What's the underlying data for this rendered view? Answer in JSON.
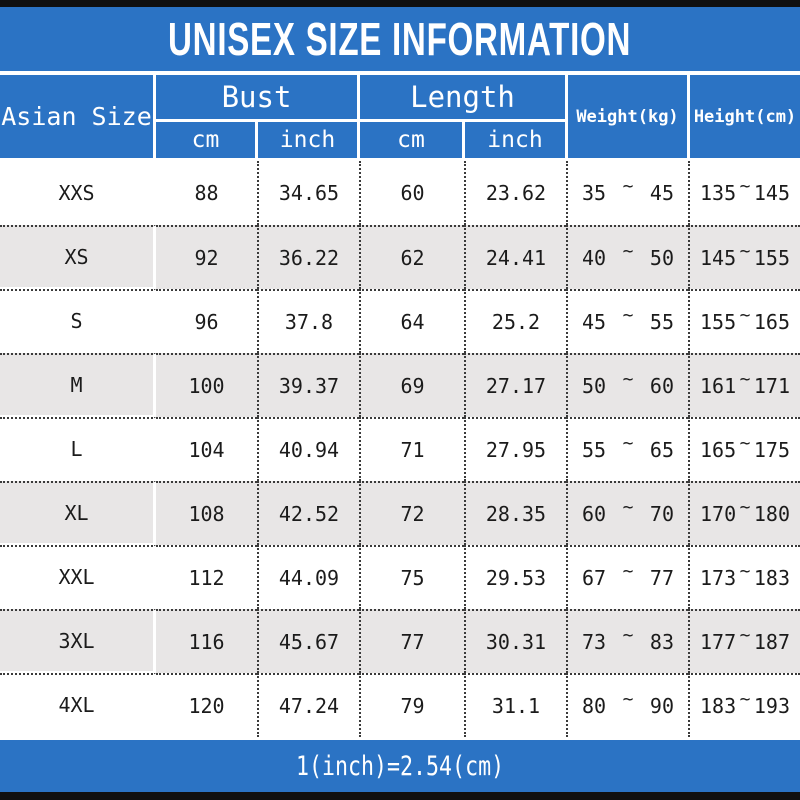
{
  "theme": {
    "blue": "#2b73c4",
    "bar_black": "#101010",
    "row_alt": "#e8e6e6",
    "dotted": "#3a3a3a",
    "text_dark": "#1b1b1b"
  },
  "title": "UNISEX SIZE INFORMATION",
  "table": {
    "corner_header": "Asian Size",
    "group_bust": "Bust",
    "group_length": "Length",
    "sub_cm_1": "cm",
    "sub_inch_1": "inch",
    "sub_cm_2": "cm",
    "sub_inch_2": "inch",
    "weight_header": "Weight(kg)",
    "height_header": "Height(cm)",
    "tilde": "~",
    "rows": [
      {
        "size": "XXS",
        "bust_cm": "88",
        "bust_in": "34.65",
        "len_cm": "60",
        "len_in": "23.62",
        "wt_min": "35",
        "wt_max": "45",
        "ht_min": "135",
        "ht_max": "145"
      },
      {
        "size": "XS",
        "bust_cm": "92",
        "bust_in": "36.22",
        "len_cm": "62",
        "len_in": "24.41",
        "wt_min": "40",
        "wt_max": "50",
        "ht_min": "145",
        "ht_max": "155"
      },
      {
        "size": "S",
        "bust_cm": "96",
        "bust_in": "37.8",
        "len_cm": "64",
        "len_in": "25.2",
        "wt_min": "45",
        "wt_max": "55",
        "ht_min": "155",
        "ht_max": "165"
      },
      {
        "size": "M",
        "bust_cm": "100",
        "bust_in": "39.37",
        "len_cm": "69",
        "len_in": "27.17",
        "wt_min": "50",
        "wt_max": "60",
        "ht_min": "161",
        "ht_max": "171"
      },
      {
        "size": "L",
        "bust_cm": "104",
        "bust_in": "40.94",
        "len_cm": "71",
        "len_in": "27.95",
        "wt_min": "55",
        "wt_max": "65",
        "ht_min": "165",
        "ht_max": "175"
      },
      {
        "size": "XL",
        "bust_cm": "108",
        "bust_in": "42.52",
        "len_cm": "72",
        "len_in": "28.35",
        "wt_min": "60",
        "wt_max": "70",
        "ht_min": "170",
        "ht_max": "180"
      },
      {
        "size": "XXL",
        "bust_cm": "112",
        "bust_in": "44.09",
        "len_cm": "75",
        "len_in": "29.53",
        "wt_min": "67",
        "wt_max": "77",
        "ht_min": "173",
        "ht_max": "183"
      },
      {
        "size": "3XL",
        "bust_cm": "116",
        "bust_in": "45.67",
        "len_cm": "77",
        "len_in": "30.31",
        "wt_min": "73",
        "wt_max": "83",
        "ht_min": "177",
        "ht_max": "187"
      },
      {
        "size": "4XL",
        "bust_cm": "120",
        "bust_in": "47.24",
        "len_cm": "79",
        "len_in": "31.1",
        "wt_min": "80",
        "wt_max": "90",
        "ht_min": "183",
        "ht_max": "193"
      }
    ]
  },
  "footer": {
    "note": "1(inch)=2.54(cm)"
  },
  "chart_data": {
    "type": "table",
    "title": "UNISEX SIZE INFORMATION",
    "columns": [
      "Asian Size",
      "Bust cm",
      "Bust inch",
      "Length cm",
      "Length inch",
      "Weight(kg)",
      "Height(cm)"
    ],
    "rows": [
      [
        "XXS",
        "88",
        "34.65",
        "60",
        "23.62",
        "35~45",
        "135~145"
      ],
      [
        "XS",
        "92",
        "36.22",
        "62",
        "24.41",
        "40~50",
        "145~155"
      ],
      [
        "S",
        "96",
        "37.8",
        "64",
        "25.2",
        "45~55",
        "155~165"
      ],
      [
        "M",
        "100",
        "39.37",
        "69",
        "27.17",
        "50~60",
        "161~171"
      ],
      [
        "L",
        "104",
        "40.94",
        "71",
        "27.95",
        "55~65",
        "165~175"
      ],
      [
        "XL",
        "108",
        "42.52",
        "72",
        "28.35",
        "60~70",
        "170~180"
      ],
      [
        "XXL",
        "112",
        "44.09",
        "75",
        "29.53",
        "67~77",
        "173~183"
      ],
      [
        "3XL",
        "116",
        "45.67",
        "77",
        "30.31",
        "73~83",
        "177~187"
      ],
      [
        "4XL",
        "120",
        "47.24",
        "79",
        "31.1",
        "80~90",
        "183~193"
      ]
    ],
    "note": "1(inch)=2.54(cm)",
    "layout": {
      "alternating_row_colors": [
        "#ffffff",
        "#e8e6e6"
      ],
      "header_color": "#2b73c4",
      "grid_style": "dotted"
    }
  }
}
